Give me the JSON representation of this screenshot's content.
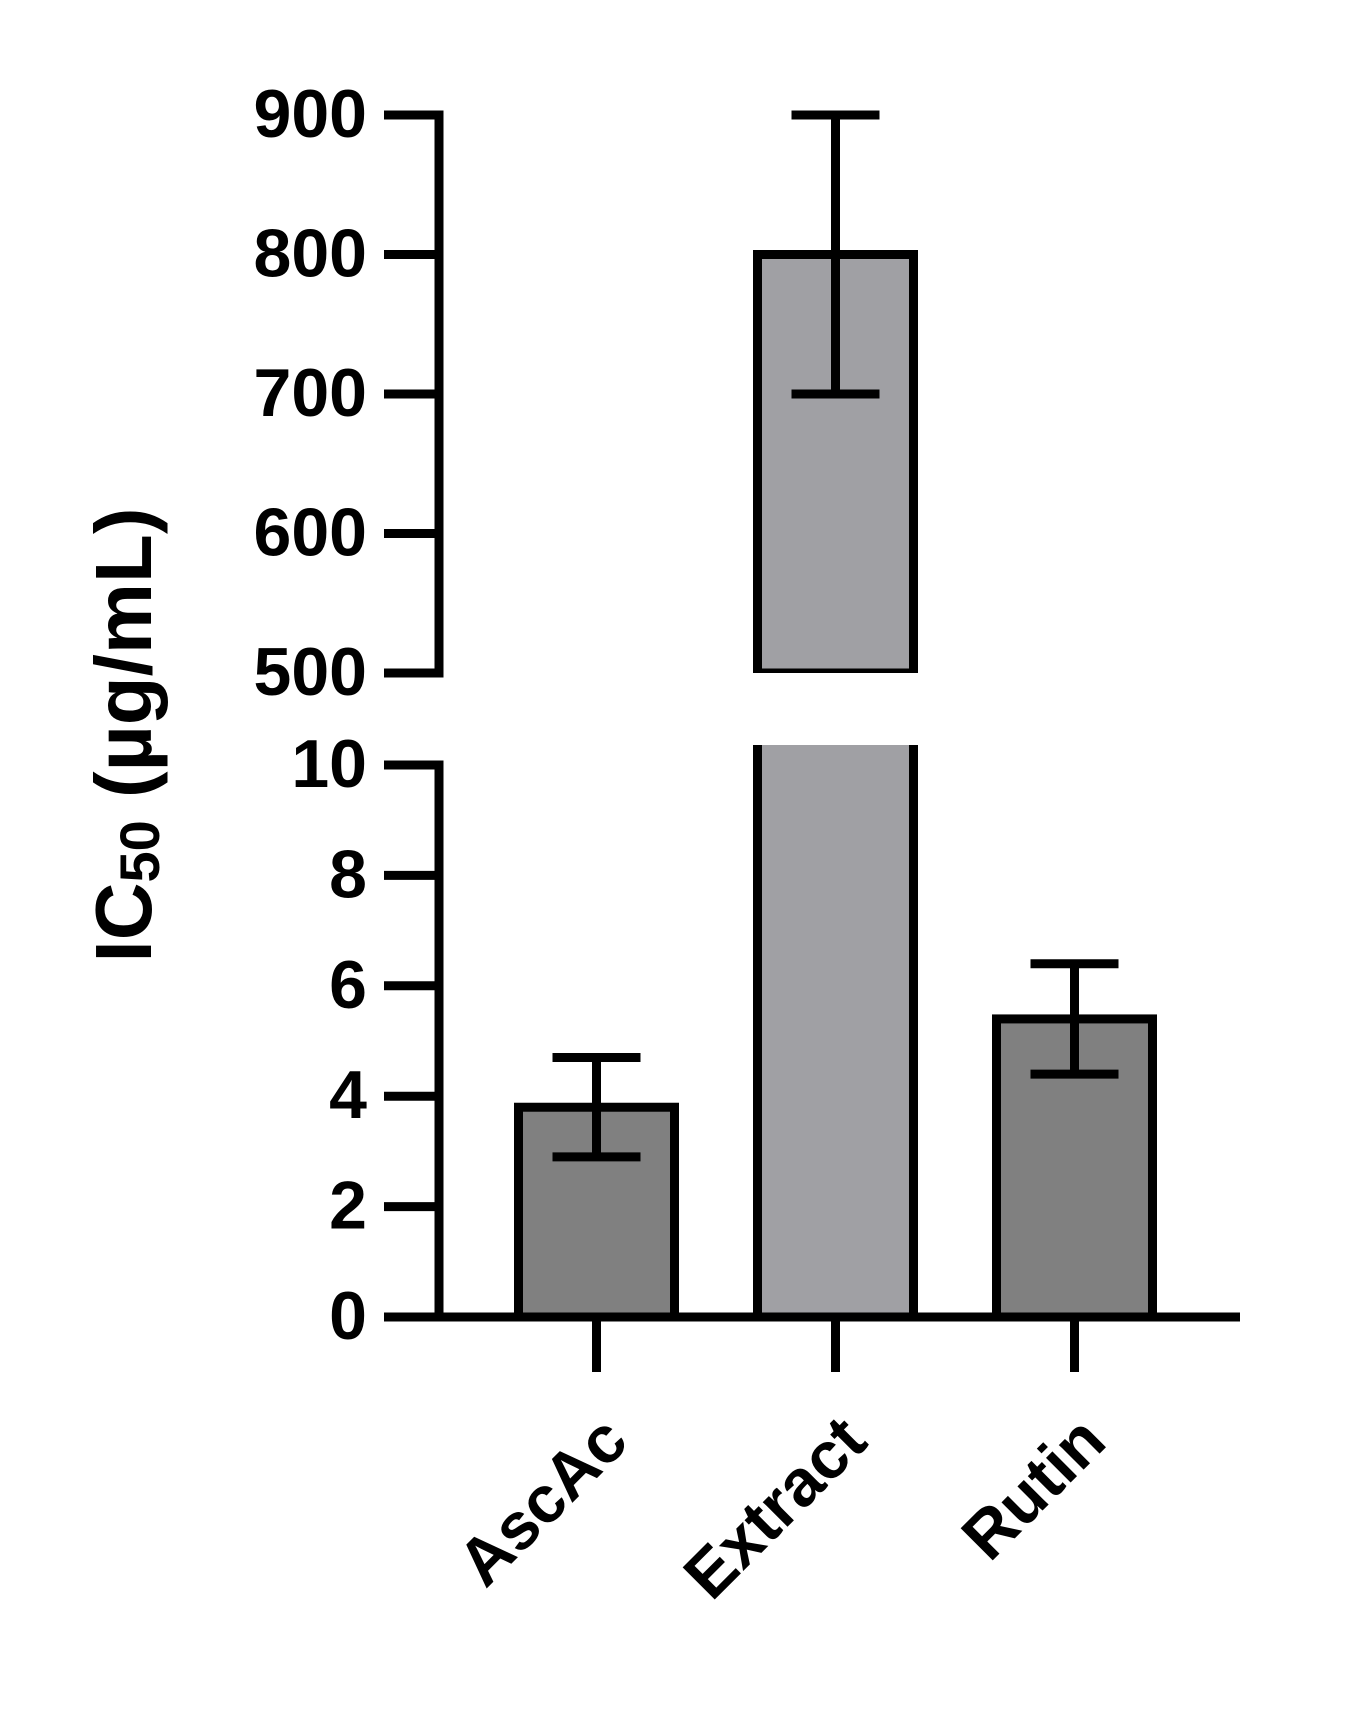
{
  "chart_data": {
    "type": "bar",
    "y_label": {
      "main": "IC",
      "sub": "50",
      "rest": " (µg/mL)"
    },
    "categories": [
      "AscAc",
      "Extract",
      "Rutin"
    ],
    "values": [
      3.8,
      800,
      5.4
    ],
    "errors": [
      0.9,
      100,
      1.0
    ],
    "colors": [
      "#808080",
      "#a0a0a4",
      "#808080"
    ],
    "segments": [
      {
        "ylim": [
          0,
          10
        ],
        "yticks": [
          0,
          2,
          4,
          6,
          8,
          10
        ]
      },
      {
        "ylim": [
          500,
          900
        ],
        "yticks": [
          500,
          600,
          700,
          800,
          900
        ]
      }
    ]
  }
}
